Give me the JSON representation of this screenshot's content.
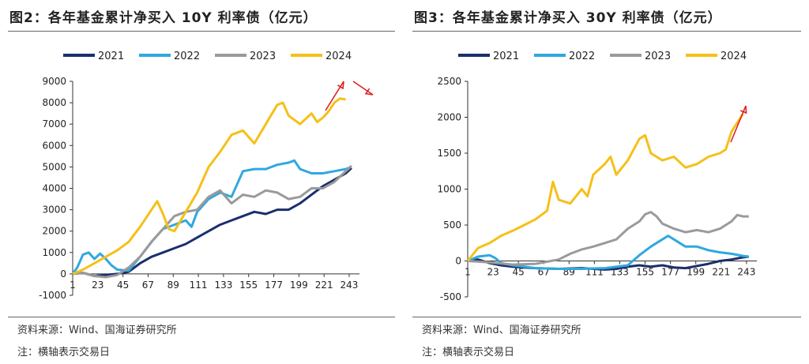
{
  "charts": [
    {
      "title": "图2：各年基金累计净买入 10Y 利率债（亿元）",
      "source": "资料来源：Wind、国海证券研究所",
      "note": "注：横轴表示交易日"
    },
    {
      "title": "图3：各年基金累计净买入 30Y 利率债（亿元）",
      "source": "资料来源：Wind、国海证券研究所",
      "note": "注：横轴表示交易日"
    }
  ],
  "chart_data": [
    {
      "type": "line",
      "title": "各年基金累计净买入 10Y 利率债（亿元）",
      "x_ticks": [
        1,
        23,
        45,
        67,
        89,
        111,
        133,
        155,
        177,
        199,
        221,
        243
      ],
      "y_ticks": [
        -1000,
        0,
        1000,
        2000,
        3000,
        4000,
        5000,
        6000,
        7000,
        8000,
        9000
      ],
      "ylim": [
        -1000,
        9000
      ],
      "xlim": [
        1,
        252
      ],
      "legend_position": "top",
      "series": [
        {
          "name": "2021",
          "color": "#1a2f6e",
          "points": [
            [
              1,
              0
            ],
            [
              10,
              50
            ],
            [
              20,
              -100
            ],
            [
              30,
              -50
            ],
            [
              40,
              0
            ],
            [
              50,
              100
            ],
            [
              60,
              500
            ],
            [
              70,
              800
            ],
            [
              80,
              1000
            ],
            [
              90,
              1200
            ],
            [
              100,
              1400
            ],
            [
              110,
              1700
            ],
            [
              120,
              2000
            ],
            [
              130,
              2300
            ],
            [
              140,
              2500
            ],
            [
              150,
              2700
            ],
            [
              160,
              2900
            ],
            [
              170,
              2800
            ],
            [
              180,
              3000
            ],
            [
              190,
              3000
            ],
            [
              200,
              3300
            ],
            [
              210,
              3700
            ],
            [
              220,
              4100
            ],
            [
              230,
              4400
            ],
            [
              240,
              4700
            ],
            [
              245,
              4950
            ]
          ]
        },
        {
          "name": "2022",
          "color": "#2fa8e0",
          "points": [
            [
              1,
              0
            ],
            [
              5,
              300
            ],
            [
              10,
              900
            ],
            [
              15,
              1000
            ],
            [
              20,
              700
            ],
            [
              25,
              950
            ],
            [
              30,
              700
            ],
            [
              35,
              400
            ],
            [
              40,
              200
            ],
            [
              50,
              150
            ],
            [
              60,
              800
            ],
            [
              70,
              1500
            ],
            [
              80,
              2100
            ],
            [
              90,
              2300
            ],
            [
              100,
              2500
            ],
            [
              105,
              2200
            ],
            [
              110,
              2900
            ],
            [
              120,
              3500
            ],
            [
              130,
              3800
            ],
            [
              140,
              3600
            ],
            [
              150,
              4800
            ],
            [
              160,
              4900
            ],
            [
              170,
              4900
            ],
            [
              180,
              5100
            ],
            [
              190,
              5200
            ],
            [
              195,
              5300
            ],
            [
              200,
              4900
            ],
            [
              210,
              4700
            ],
            [
              220,
              4700
            ],
            [
              230,
              4800
            ],
            [
              240,
              4900
            ],
            [
              245,
              5000
            ]
          ]
        },
        {
          "name": "2023",
          "color": "#9a9a9a",
          "points": [
            [
              1,
              0
            ],
            [
              10,
              50
            ],
            [
              20,
              -100
            ],
            [
              30,
              -150
            ],
            [
              40,
              -50
            ],
            [
              50,
              300
            ],
            [
              60,
              800
            ],
            [
              70,
              1500
            ],
            [
              80,
              2100
            ],
            [
              90,
              2700
            ],
            [
              100,
              2900
            ],
            [
              110,
              3000
            ],
            [
              120,
              3600
            ],
            [
              130,
              3900
            ],
            [
              140,
              3300
            ],
            [
              150,
              3700
            ],
            [
              160,
              3600
            ],
            [
              170,
              3900
            ],
            [
              180,
              3800
            ],
            [
              190,
              3500
            ],
            [
              200,
              3600
            ],
            [
              210,
              4000
            ],
            [
              220,
              4000
            ],
            [
              230,
              4300
            ],
            [
              240,
              4800
            ],
            [
              245,
              5050
            ]
          ]
        },
        {
          "name": "2024",
          "color": "#f5c018",
          "points": [
            [
              1,
              0
            ],
            [
              10,
              200
            ],
            [
              20,
              500
            ],
            [
              30,
              800
            ],
            [
              40,
              1100
            ],
            [
              50,
              1500
            ],
            [
              60,
              2200
            ],
            [
              70,
              3000
            ],
            [
              75,
              3400
            ],
            [
              80,
              2800
            ],
            [
              85,
              2100
            ],
            [
              90,
              2000
            ],
            [
              100,
              2900
            ],
            [
              110,
              3800
            ],
            [
              120,
              5000
            ],
            [
              130,
              5700
            ],
            [
              140,
              6500
            ],
            [
              150,
              6700
            ],
            [
              160,
              6100
            ],
            [
              170,
              7000
            ],
            [
              180,
              7900
            ],
            [
              185,
              8000
            ],
            [
              190,
              7400
            ],
            [
              200,
              7000
            ],
            [
              210,
              7500
            ],
            [
              215,
              7100
            ],
            [
              220,
              7300
            ],
            [
              225,
              7600
            ],
            [
              230,
              8000
            ],
            [
              235,
              8200
            ],
            [
              240,
              8150
            ]
          ]
        }
      ],
      "arrows": "two red arrows at top-right: one pointing up, one pointing down-right"
    },
    {
      "type": "line",
      "title": "各年基金累计净买入 30Y 利率债（亿元）",
      "x_ticks": [
        1,
        23,
        45,
        67,
        89,
        111,
        133,
        155,
        177,
        199,
        221,
        243
      ],
      "y_ticks": [
        -500,
        0,
        500,
        1000,
        1500,
        2000,
        2500
      ],
      "ylim": [
        -500,
        2500
      ],
      "xlim": [
        1,
        252
      ],
      "legend_position": "top",
      "series": [
        {
          "name": "2021",
          "color": "#1a2f6e",
          "points": [
            [
              1,
              0
            ],
            [
              10,
              20
            ],
            [
              20,
              -30
            ],
            [
              30,
              -60
            ],
            [
              40,
              -80
            ],
            [
              50,
              -90
            ],
            [
              60,
              -100
            ],
            [
              80,
              -110
            ],
            [
              100,
              -100
            ],
            [
              120,
              -120
            ],
            [
              130,
              -110
            ],
            [
              140,
              -80
            ],
            [
              150,
              -60
            ],
            [
              160,
              -80
            ],
            [
              170,
              -60
            ],
            [
              180,
              -90
            ],
            [
              190,
              -100
            ],
            [
              200,
              -70
            ],
            [
              210,
              -40
            ],
            [
              220,
              0
            ],
            [
              230,
              20
            ],
            [
              240,
              50
            ],
            [
              245,
              60
            ]
          ]
        },
        {
          "name": "2022",
          "color": "#2fa8e0",
          "points": [
            [
              1,
              0
            ],
            [
              10,
              60
            ],
            [
              20,
              80
            ],
            [
              25,
              40
            ],
            [
              30,
              -30
            ],
            [
              40,
              -60
            ],
            [
              50,
              -80
            ],
            [
              60,
              -100
            ],
            [
              80,
              -110
            ],
            [
              100,
              -110
            ],
            [
              120,
              -100
            ],
            [
              140,
              -60
            ],
            [
              150,
              80
            ],
            [
              160,
              200
            ],
            [
              170,
              300
            ],
            [
              175,
              350
            ],
            [
              180,
              300
            ],
            [
              190,
              200
            ],
            [
              200,
              200
            ],
            [
              210,
              150
            ],
            [
              220,
              120
            ],
            [
              230,
              100
            ],
            [
              240,
              70
            ],
            [
              245,
              60
            ]
          ]
        },
        {
          "name": "2023",
          "color": "#9a9a9a",
          "points": [
            [
              1,
              0
            ],
            [
              20,
              -20
            ],
            [
              40,
              -50
            ],
            [
              60,
              -40
            ],
            [
              80,
              20
            ],
            [
              90,
              100
            ],
            [
              100,
              160
            ],
            [
              110,
              200
            ],
            [
              120,
              250
            ],
            [
              130,
              300
            ],
            [
              140,
              450
            ],
            [
              150,
              550
            ],
            [
              155,
              650
            ],
            [
              160,
              680
            ],
            [
              165,
              620
            ],
            [
              170,
              520
            ],
            [
              180,
              450
            ],
            [
              190,
              400
            ],
            [
              200,
              430
            ],
            [
              210,
              400
            ],
            [
              220,
              450
            ],
            [
              230,
              550
            ],
            [
              235,
              640
            ],
            [
              240,
              620
            ],
            [
              245,
              620
            ]
          ]
        },
        {
          "name": "2024",
          "color": "#f5c018",
          "points": [
            [
              1,
              0
            ],
            [
              10,
              180
            ],
            [
              20,
              250
            ],
            [
              30,
              350
            ],
            [
              40,
              420
            ],
            [
              50,
              500
            ],
            [
              60,
              580
            ],
            [
              70,
              700
            ],
            [
              75,
              1100
            ],
            [
              80,
              850
            ],
            [
              90,
              800
            ],
            [
              100,
              1000
            ],
            [
              105,
              900
            ],
            [
              110,
              1200
            ],
            [
              120,
              1350
            ],
            [
              125,
              1450
            ],
            [
              130,
              1200
            ],
            [
              140,
              1400
            ],
            [
              150,
              1700
            ],
            [
              155,
              1750
            ],
            [
              160,
              1500
            ],
            [
              170,
              1400
            ],
            [
              180,
              1450
            ],
            [
              190,
              1300
            ],
            [
              200,
              1350
            ],
            [
              210,
              1450
            ],
            [
              220,
              1500
            ],
            [
              225,
              1550
            ],
            [
              230,
              1800
            ],
            [
              240,
              2050
            ]
          ]
        }
      ],
      "arrows": "one red arrow at top-right pointing up"
    }
  ]
}
